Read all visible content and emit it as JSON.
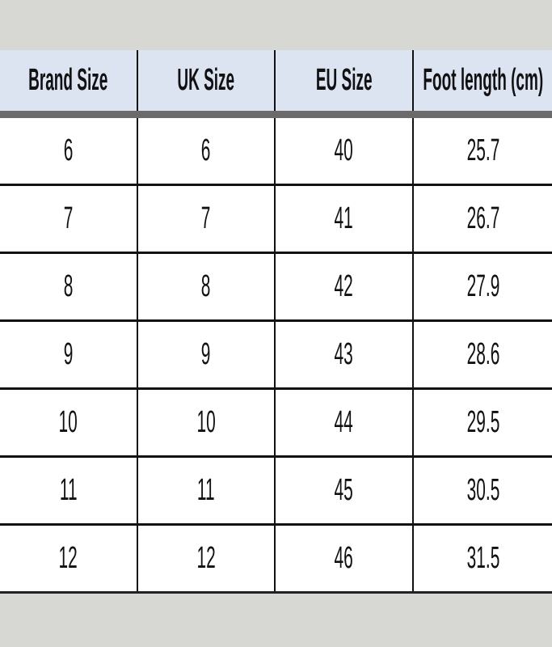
{
  "table": {
    "headers": [
      "Brand Size",
      "UK Size",
      "EU Size",
      "Foot length (cm)"
    ],
    "rows": [
      [
        "6",
        "6",
        "40",
        "25.7"
      ],
      [
        "7",
        "7",
        "41",
        "26.7"
      ],
      [
        "8",
        "8",
        "42",
        "27.9"
      ],
      [
        "9",
        "9",
        "43",
        "28.6"
      ],
      [
        "10",
        "10",
        "44",
        "29.5"
      ],
      [
        "11",
        "11",
        "45",
        "30.5"
      ],
      [
        "12",
        "12",
        "46",
        "31.5"
      ]
    ]
  },
  "colors": {
    "header_bg": "#dce3f1",
    "page_bg": "#d7d8d3"
  }
}
